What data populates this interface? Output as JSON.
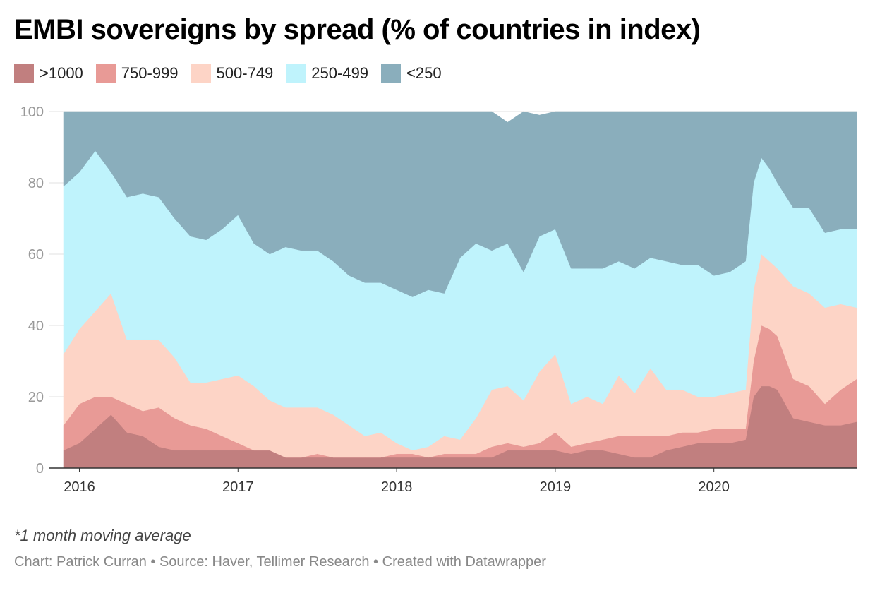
{
  "title": "EMBI sovereigns by spread (% of countries in index)",
  "footnote": "*1 month moving average",
  "credits": {
    "chart": "Chart: Patrick Curran",
    "sep1": " • ",
    "source": "Source: Haver, Tellimer Research",
    "sep2": " • ",
    "created": "Created with Datawrapper"
  },
  "chart_data": {
    "type": "area",
    "stacked": true,
    "xlabel": "",
    "ylabel": "",
    "xlim": [
      2015.9,
      2020.9
    ],
    "ylim": [
      0,
      100
    ],
    "yticks": [
      0,
      20,
      40,
      60,
      80,
      100
    ],
    "xticks": [
      {
        "value": 2016,
        "label": "2016"
      },
      {
        "value": 2017,
        "label": "2017"
      },
      {
        "value": 2018,
        "label": "2018"
      },
      {
        "value": 2019,
        "label": "2019"
      },
      {
        "value": 2020,
        "label": "2020"
      }
    ],
    "grid": true,
    "legend_position": "top-left",
    "x": [
      2015.9,
      2016.0,
      2016.1,
      2016.2,
      2016.3,
      2016.4,
      2016.5,
      2016.6,
      2016.7,
      2016.8,
      2016.9,
      2017.0,
      2017.1,
      2017.2,
      2017.3,
      2017.4,
      2017.5,
      2017.6,
      2017.7,
      2017.8,
      2017.9,
      2018.0,
      2018.1,
      2018.2,
      2018.3,
      2018.4,
      2018.5,
      2018.6,
      2018.7,
      2018.8,
      2018.9,
      2019.0,
      2019.1,
      2019.2,
      2019.3,
      2019.4,
      2019.5,
      2019.6,
      2019.7,
      2019.8,
      2019.9,
      2020.0,
      2020.1,
      2020.2,
      2020.25,
      2020.3,
      2020.35,
      2020.4,
      2020.5,
      2020.6,
      2020.7,
      2020.8,
      2020.9
    ],
    "series": [
      {
        "name": ">1000",
        "color": "#c17f7f",
        "values": [
          5,
          7,
          11,
          15,
          10,
          9,
          6,
          5,
          5,
          5,
          5,
          5,
          5,
          5,
          3,
          3,
          3,
          3,
          3,
          3,
          3,
          3,
          3,
          3,
          3,
          3,
          3,
          3,
          5,
          5,
          5,
          5,
          4,
          5,
          5,
          4,
          3,
          3,
          5,
          6,
          7,
          7,
          7,
          8,
          20,
          23,
          23,
          22,
          14,
          13,
          12,
          12,
          13
        ]
      },
      {
        "name": "750-999",
        "color": "#e89a96",
        "values": [
          7,
          11,
          9,
          5,
          8,
          7,
          11,
          9,
          7,
          6,
          4,
          2,
          0,
          0,
          0,
          0,
          1,
          0,
          0,
          0,
          0,
          1,
          1,
          0,
          1,
          1,
          1,
          3,
          2,
          1,
          2,
          5,
          2,
          2,
          3,
          5,
          6,
          6,
          4,
          4,
          3,
          4,
          4,
          3,
          10,
          17,
          16,
          15,
          11,
          10,
          6,
          10,
          12
        ]
      },
      {
        "name": "500-749",
        "color": "#fdd4c6",
        "values": [
          20,
          21,
          24,
          29,
          18,
          20,
          19,
          17,
          12,
          13,
          16,
          19,
          18,
          14,
          14,
          14,
          13,
          12,
          9,
          6,
          7,
          3,
          1,
          3,
          5,
          4,
          10,
          16,
          16,
          13,
          20,
          22,
          12,
          13,
          10,
          17,
          12,
          19,
          13,
          12,
          10,
          9,
          10,
          11,
          20,
          20,
          19,
          19,
          26,
          26,
          27,
          24,
          20
        ]
      },
      {
        "name": "250-499",
        "color": "#bff3fc",
        "values": [
          47,
          44,
          45,
          34,
          40,
          41,
          40,
          39,
          41,
          40,
          42,
          45,
          40,
          41,
          45,
          44,
          44,
          43,
          42,
          43,
          42,
          43,
          43,
          44,
          40,
          51,
          49,
          39,
          40,
          36,
          38,
          35,
          38,
          36,
          38,
          32,
          35,
          31,
          36,
          35,
          37,
          34,
          34,
          36,
          30,
          27,
          26,
          24,
          22,
          24,
          21,
          21,
          22
        ]
      },
      {
        "name": "<250",
        "color": "#8aaebc",
        "values": [
          21,
          17,
          11,
          17,
          24,
          23,
          24,
          30,
          35,
          36,
          33,
          29,
          37,
          40,
          38,
          39,
          39,
          42,
          46,
          48,
          48,
          50,
          52,
          50,
          51,
          41,
          37,
          39,
          34,
          45,
          34,
          33,
          44,
          44,
          44,
          42,
          44,
          41,
          42,
          43,
          43,
          46,
          45,
          42,
          20,
          13,
          16,
          20,
          27,
          27,
          34,
          33,
          33
        ]
      }
    ]
  }
}
